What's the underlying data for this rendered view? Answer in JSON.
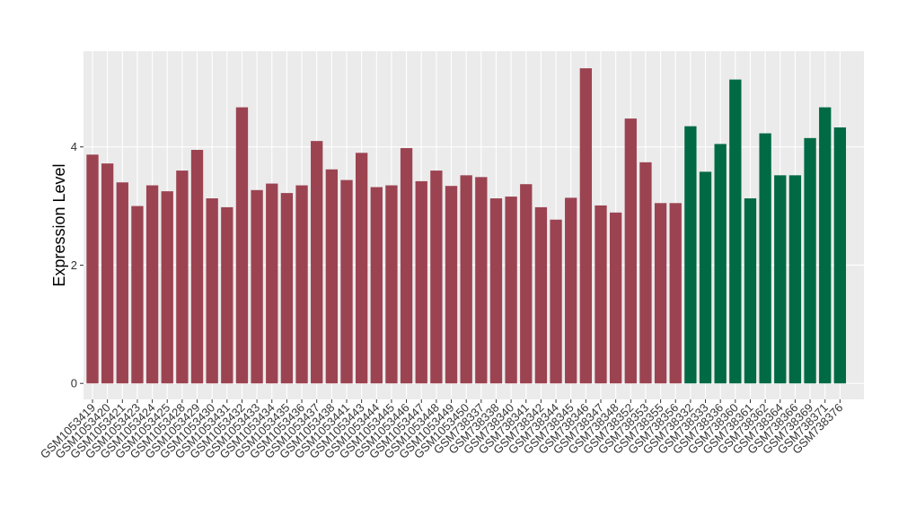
{
  "chart_data": {
    "type": "bar",
    "y_label": "Expression Level",
    "categories": [
      "GSM1053419",
      "GSM1053420",
      "GSM1053421",
      "GSM1053423",
      "GSM1053424",
      "GSM1053425",
      "GSM1053428",
      "GSM1053429",
      "GSM1053430",
      "GSM1053431",
      "GSM1053432",
      "GSM1053433",
      "GSM1053434",
      "GSM1053435",
      "GSM1053436",
      "GSM1053437",
      "GSM1053438",
      "GSM1053441",
      "GSM1053443",
      "GSM1053444",
      "GSM1053445",
      "GSM1053446",
      "GSM1053447",
      "GSM1053448",
      "GSM1053449",
      "GSM1053450",
      "GSM738337",
      "GSM738338",
      "GSM738340",
      "GSM738341",
      "GSM738342",
      "GSM738344",
      "GSM738345",
      "GSM738346",
      "GSM738347",
      "GSM738348",
      "GSM738352",
      "GSM738353",
      "GSM738355",
      "GSM738356",
      "GSM738332",
      "GSM738333",
      "GSM738336",
      "GSM738360",
      "GSM738361",
      "GSM738362",
      "GSM738364",
      "GSM738366",
      "GSM738369",
      "GSM738371",
      "GSM738376"
    ],
    "values": [
      3.87,
      3.72,
      3.4,
      3.0,
      3.35,
      3.25,
      3.6,
      3.95,
      3.13,
      2.98,
      4.67,
      3.27,
      3.38,
      3.22,
      3.35,
      4.1,
      3.62,
      3.44,
      3.9,
      3.32,
      3.35,
      3.98,
      3.42,
      3.6,
      3.34,
      3.52,
      3.49,
      3.13,
      3.16,
      3.37,
      2.98,
      2.77,
      3.14,
      5.33,
      3.01,
      2.89,
      4.48,
      3.74,
      3.05,
      3.05,
      4.35,
      3.58,
      4.05,
      5.14,
      3.13,
      4.23,
      3.52,
      3.52,
      4.15,
      4.67,
      4.33
    ],
    "colors": [
      "#9c4351",
      "#9c4351",
      "#9c4351",
      "#9c4351",
      "#9c4351",
      "#9c4351",
      "#9c4351",
      "#9c4351",
      "#9c4351",
      "#9c4351",
      "#9c4351",
      "#9c4351",
      "#9c4351",
      "#9c4351",
      "#9c4351",
      "#9c4351",
      "#9c4351",
      "#9c4351",
      "#9c4351",
      "#9c4351",
      "#9c4351",
      "#9c4351",
      "#9c4351",
      "#9c4351",
      "#9c4351",
      "#9c4351",
      "#9c4351",
      "#9c4351",
      "#9c4351",
      "#9c4351",
      "#9c4351",
      "#9c4351",
      "#9c4351",
      "#9c4351",
      "#9c4351",
      "#9c4351",
      "#9c4351",
      "#9c4351",
      "#9c4351",
      "#9c4351",
      "#006a45",
      "#006a45",
      "#006a45",
      "#006a45",
      "#006a45",
      "#006a45",
      "#006a45",
      "#006a45",
      "#006a45",
      "#006a45",
      "#006a45"
    ],
    "ylim": [
      -0.27,
      5.62
    ],
    "yticks": [
      0,
      2,
      4
    ],
    "grid": true
  }
}
